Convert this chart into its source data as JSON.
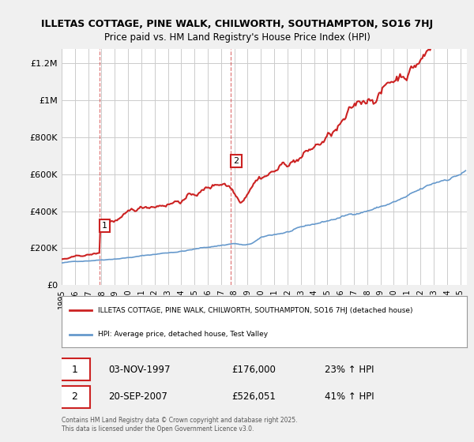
{
  "title_line1": "ILLETAS COTTAGE, PINE WALK, CHILWORTH, SOUTHAMPTON, SO16 7HJ",
  "title_line2": "Price paid vs. HM Land Registry's House Price Index (HPI)",
  "ylabel_ticks": [
    "£0",
    "£200K",
    "£400K",
    "£600K",
    "£800K",
    "£1M",
    "£1.2M"
  ],
  "ytick_values": [
    0,
    200000,
    400000,
    600000,
    800000,
    1000000,
    1200000
  ],
  "ylim": [
    0,
    1280000
  ],
  "xlim_start": 1995.0,
  "xlim_end": 2025.5,
  "xtick_years": [
    1995,
    1996,
    1997,
    1998,
    1999,
    2000,
    2001,
    2002,
    2003,
    2004,
    2005,
    2006,
    2007,
    2008,
    2009,
    2010,
    2011,
    2012,
    2013,
    2014,
    2015,
    2016,
    2017,
    2018,
    2019,
    2020,
    2021,
    2022,
    2023,
    2024,
    2025
  ],
  "purchase1_x": 1997.84,
  "purchase1_y": 176000,
  "purchase1_label": "1",
  "purchase1_date": "03-NOV-1997",
  "purchase1_price": "£176,000",
  "purchase1_hpi": "23% ↑ HPI",
  "purchase2_x": 2007.72,
  "purchase2_y": 526051,
  "purchase2_label": "2",
  "purchase2_date": "20-SEP-2007",
  "purchase2_price": "£526,051",
  "purchase2_hpi": "41% ↑ HPI",
  "hpi_color": "#6699cc",
  "price_color": "#cc2222",
  "background_color": "#f0f0f0",
  "plot_bg_color": "#ffffff",
  "grid_color": "#cccccc",
  "legend_label_property": "ILLETAS COTTAGE, PINE WALK, CHILWORTH, SOUTHAMPTON, SO16 7HJ (detached house)",
  "legend_label_hpi": "HPI: Average price, detached house, Test Valley",
  "copyright_text": "Contains HM Land Registry data © Crown copyright and database right 2025.\nThis data is licensed under the Open Government Licence v3.0."
}
